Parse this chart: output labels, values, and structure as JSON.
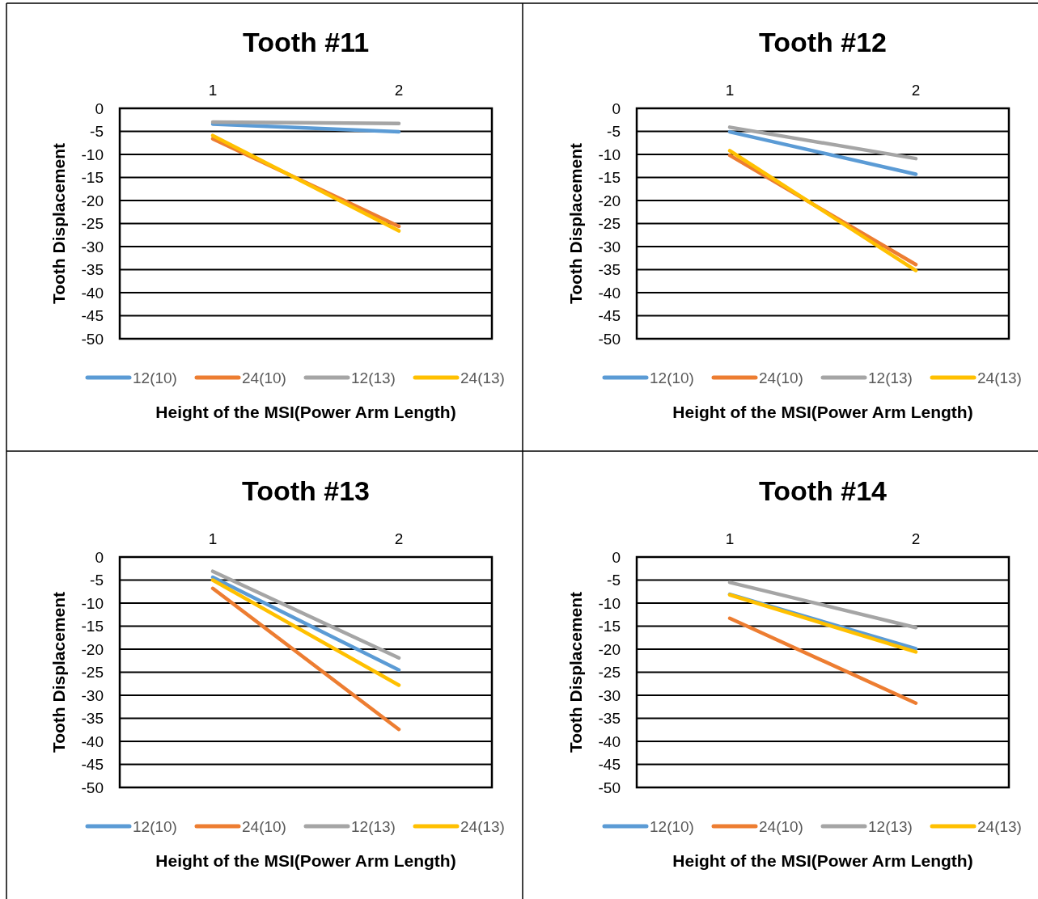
{
  "chart_data": [
    {
      "type": "line",
      "title": "Tooth #11",
      "xlabel": "Height of the MSI(Power Arm Length)",
      "ylabel": "Tooth Displacement",
      "categories": [
        "1",
        "2"
      ],
      "ylim": [
        -50,
        0
      ],
      "yticks": [
        0,
        -5,
        -10,
        -15,
        -20,
        -25,
        -30,
        -35,
        -40,
        -45,
        -50
      ],
      "grid": "y",
      "legend": "bottom",
      "series": [
        {
          "name": "12(10)",
          "color": "#5b9bd5",
          "values": [
            -3.4,
            -5.1
          ]
        },
        {
          "name": "24(10)",
          "color": "#ed7d31",
          "values": [
            -6.6,
            -25.6
          ]
        },
        {
          "name": "12(13)",
          "color": "#a5a5a5",
          "values": [
            -3,
            -3.3
          ]
        },
        {
          "name": "24(13)",
          "color": "#ffc000",
          "values": [
            -5.9,
            -26.6
          ]
        }
      ]
    },
    {
      "type": "line",
      "title": "Tooth #12",
      "xlabel": "Height of the MSI(Power Arm Length)",
      "ylabel": "Tooth Displacement",
      "categories": [
        "1",
        "2"
      ],
      "ylim": [
        -50,
        0
      ],
      "yticks": [
        0,
        -5,
        -10,
        -15,
        -20,
        -25,
        -30,
        -35,
        -40,
        -45,
        -50
      ],
      "grid": "y",
      "legend": "bottom",
      "series": [
        {
          "name": "12(10)",
          "color": "#5b9bd5",
          "values": [
            -5.1,
            -14.3
          ]
        },
        {
          "name": "24(10)",
          "color": "#ed7d31",
          "values": [
            -10.2,
            -33.9
          ]
        },
        {
          "name": "12(13)",
          "color": "#a5a5a5",
          "values": [
            -4.1,
            -10.9
          ]
        },
        {
          "name": "24(13)",
          "color": "#ffc000",
          "values": [
            -9.2,
            -35.2
          ]
        }
      ]
    },
    {
      "type": "line",
      "title": "Tooth #13",
      "xlabel": "Height of the MSI(Power Arm Length)",
      "ylabel": "Tooth Displacement",
      "categories": [
        "1",
        "2"
      ],
      "ylim": [
        -50,
        0
      ],
      "yticks": [
        0,
        -5,
        -10,
        -15,
        -20,
        -25,
        -30,
        -35,
        -40,
        -45,
        -50
      ],
      "grid": "y",
      "legend": "bottom",
      "series": [
        {
          "name": "12(10)",
          "color": "#5b9bd5",
          "values": [
            -4.4,
            -24.5
          ]
        },
        {
          "name": "24(10)",
          "color": "#ed7d31",
          "values": [
            -6.8,
            -37.4
          ]
        },
        {
          "name": "12(13)",
          "color": "#a5a5a5",
          "values": [
            -3.1,
            -21.9
          ]
        },
        {
          "name": "24(13)",
          "color": "#ffc000",
          "values": [
            -5,
            -27.8
          ]
        }
      ]
    },
    {
      "type": "line",
      "title": "Tooth #14",
      "xlabel": "Height of the MSI(Power Arm Length)",
      "ylabel": "Tooth Displacement",
      "categories": [
        "1",
        "2"
      ],
      "ylim": [
        -50,
        0
      ],
      "yticks": [
        0,
        -5,
        -10,
        -15,
        -20,
        -25,
        -30,
        -35,
        -40,
        -45,
        -50
      ],
      "grid": "y",
      "legend": "bottom",
      "series": [
        {
          "name": "12(10)",
          "color": "#5b9bd5",
          "values": [
            -8.1,
            -19.9
          ]
        },
        {
          "name": "24(10)",
          "color": "#ed7d31",
          "values": [
            -13.3,
            -31.7
          ]
        },
        {
          "name": "12(13)",
          "color": "#a5a5a5",
          "values": [
            -5.5,
            -15.3
          ]
        },
        {
          "name": "24(13)",
          "color": "#ffc000",
          "values": [
            -8.2,
            -20.6
          ]
        }
      ]
    }
  ]
}
